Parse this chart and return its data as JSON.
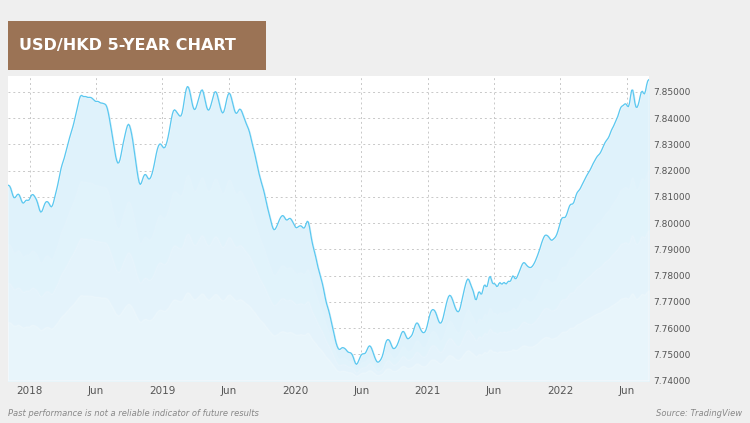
{
  "title": "USD/HKD 5-YEAR CHART",
  "title_bg_color": "#9B7355",
  "title_text_color": "#FFFFFF",
  "line_color": "#5BC8F0",
  "fill_color": "#A8D8F0",
  "background_color": "#EFEFEF",
  "plot_bg_color": "#FFFFFF",
  "grid_color": "#CCCCCC",
  "footer_left": "Past performance is not a reliable indicator of future results",
  "footer_right": "Source: TradingView",
  "ylim": [
    7.74,
    7.856
  ],
  "yticks": [
    7.74,
    7.75,
    7.76,
    7.77,
    7.78,
    7.79,
    7.8,
    7.81,
    7.82,
    7.83,
    7.84,
    7.85
  ],
  "x_tick_labels": [
    "2018",
    "Jun",
    "2019",
    "Jun",
    "2020",
    "Jun",
    "2021",
    "Jun",
    "2022",
    "Jun"
  ],
  "x_tick_positions": [
    2,
    8,
    14,
    20,
    26,
    32,
    38,
    44,
    50,
    56
  ]
}
